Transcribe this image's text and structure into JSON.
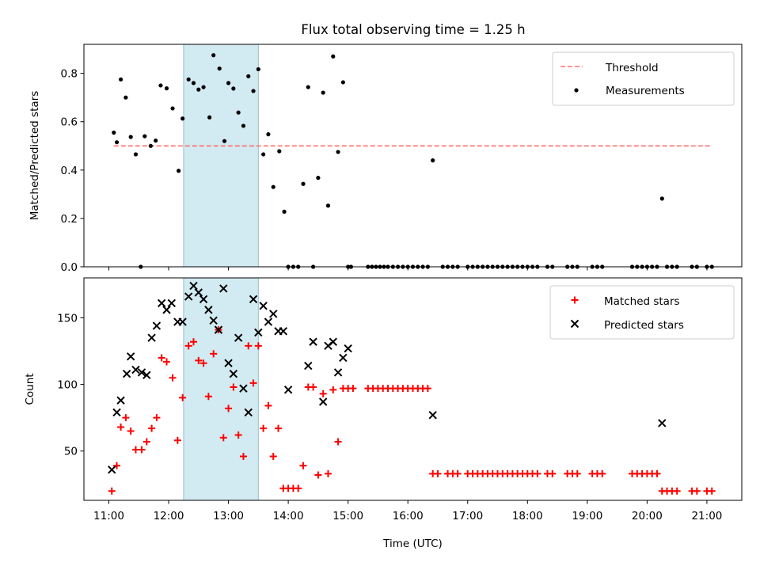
{
  "title": "Flux total observing time = 1.25 h",
  "xlabel": "Time (UTC)",
  "x_tick_labels": [
    "11:00",
    "12:00",
    "13:00",
    "14:00",
    "15:00",
    "16:00",
    "17:00",
    "18:00",
    "19:00",
    "20:00",
    "21:00"
  ],
  "colors": {
    "threshold": "#ff7070",
    "shade": "#add8e6",
    "matched": "#ff0000",
    "predicted": "#000000",
    "measure": "#000000"
  },
  "chart_data": [
    {
      "type": "scatter",
      "ylabel": "Matched/Predicted stars",
      "ylim": [
        0,
        0.92
      ],
      "y_ticks": [
        0.0,
        0.2,
        0.4,
        0.6,
        0.8
      ],
      "y_tick_labels": [
        "0.0",
        "0.2",
        "0.4",
        "0.6",
        "0.8"
      ],
      "shaded_span": [
        "12:15",
        "13:30"
      ],
      "threshold": {
        "name": "Threshold",
        "value": 0.5,
        "x_range": [
          "11:05",
          "21:05"
        ]
      },
      "legend": {
        "position": "top-right",
        "entries": [
          "Threshold",
          "Measurements"
        ]
      },
      "series": [
        {
          "name": "Measurements",
          "points": [
            [
              "11:05",
              0.555
            ],
            [
              "11:08",
              0.515
            ],
            [
              "11:12",
              0.775
            ],
            [
              "11:17",
              0.7
            ],
            [
              "11:22",
              0.537
            ],
            [
              "11:27",
              0.465
            ],
            [
              "11:32",
              0.0
            ],
            [
              "11:36",
              0.54
            ],
            [
              "11:42",
              0.5
            ],
            [
              "11:47",
              0.522
            ],
            [
              "11:52",
              0.75
            ],
            [
              "11:58",
              0.738
            ],
            [
              "12:04",
              0.655
            ],
            [
              "12:10",
              0.397
            ],
            [
              "12:14",
              0.613
            ],
            [
              "12:20",
              0.775
            ],
            [
              "12:25",
              0.76
            ],
            [
              "12:30",
              0.733
            ],
            [
              "12:35",
              0.743
            ],
            [
              "12:41",
              0.618
            ],
            [
              "12:45",
              0.875
            ],
            [
              "12:51",
              0.82
            ],
            [
              "12:56",
              0.52
            ],
            [
              "13:00",
              0.76
            ],
            [
              "13:05",
              0.737
            ],
            [
              "13:10",
              0.638
            ],
            [
              "13:15",
              0.583
            ],
            [
              "13:20",
              0.788
            ],
            [
              "13:25",
              0.727
            ],
            [
              "13:30",
              0.817
            ],
            [
              "13:35",
              0.465
            ],
            [
              "13:40",
              0.548
            ],
            [
              "13:45",
              0.33
            ],
            [
              "13:51",
              0.478
            ],
            [
              "13:56",
              0.228
            ],
            [
              "14:00",
              0.0
            ],
            [
              "14:05",
              0.0
            ],
            [
              "14:10",
              0.0
            ],
            [
              "14:15",
              0.343
            ],
            [
              "14:20",
              0.743
            ],
            [
              "14:25",
              0.0
            ],
            [
              "14:30",
              0.368
            ],
            [
              "14:35",
              0.72
            ],
            [
              "14:40",
              0.253
            ],
            [
              "14:45",
              0.87
            ],
            [
              "14:50",
              0.475
            ],
            [
              "14:55",
              0.763
            ],
            [
              "15:00",
              0.0
            ],
            [
              "15:03",
              0.0
            ],
            [
              "15:20",
              0.0
            ],
            [
              "15:24",
              0.0
            ],
            [
              "15:28",
              0.0
            ],
            [
              "15:32",
              0.0
            ],
            [
              "15:36",
              0.0
            ],
            [
              "15:40",
              0.0
            ],
            [
              "15:45",
              0.0
            ],
            [
              "15:50",
              0.0
            ],
            [
              "15:55",
              0.0
            ],
            [
              "16:00",
              0.0
            ],
            [
              "16:05",
              0.0
            ],
            [
              "16:10",
              0.0
            ],
            [
              "16:15",
              0.0
            ],
            [
              "16:20",
              0.0
            ],
            [
              "16:25",
              0.44
            ],
            [
              "16:35",
              0.0
            ],
            [
              "16:40",
              0.0
            ],
            [
              "16:45",
              0.0
            ],
            [
              "16:50",
              0.0
            ],
            [
              "17:00",
              0.0
            ],
            [
              "17:05",
              0.0
            ],
            [
              "17:10",
              0.0
            ],
            [
              "17:15",
              0.0
            ],
            [
              "17:20",
              0.0
            ],
            [
              "17:25",
              0.0
            ],
            [
              "17:30",
              0.0
            ],
            [
              "17:35",
              0.0
            ],
            [
              "17:40",
              0.0
            ],
            [
              "17:45",
              0.0
            ],
            [
              "17:50",
              0.0
            ],
            [
              "17:55",
              0.0
            ],
            [
              "18:00",
              0.0
            ],
            [
              "18:05",
              0.0
            ],
            [
              "18:10",
              0.0
            ],
            [
              "18:20",
              0.0
            ],
            [
              "18:25",
              0.0
            ],
            [
              "18:40",
              0.0
            ],
            [
              "18:45",
              0.0
            ],
            [
              "18:50",
              0.0
            ],
            [
              "19:05",
              0.0
            ],
            [
              "19:10",
              0.0
            ],
            [
              "19:15",
              0.0
            ],
            [
              "19:45",
              0.0
            ],
            [
              "19:50",
              0.0
            ],
            [
              "19:55",
              0.0
            ],
            [
              "20:00",
              0.0
            ],
            [
              "20:05",
              0.0
            ],
            [
              "20:10",
              0.0
            ],
            [
              "20:15",
              0.282
            ],
            [
              "20:20",
              0.0
            ],
            [
              "20:25",
              0.0
            ],
            [
              "20:30",
              0.0
            ],
            [
              "20:45",
              0.0
            ],
            [
              "20:50",
              0.0
            ],
            [
              "21:00",
              0.0
            ],
            [
              "21:05",
              0.0
            ]
          ]
        }
      ]
    },
    {
      "type": "scatter",
      "ylabel": "Count",
      "ylim": [
        13,
        180
      ],
      "y_ticks": [
        50,
        100,
        150
      ],
      "y_tick_labels": [
        "50",
        "100",
        "150"
      ],
      "shaded_span": [
        "12:15",
        "13:30"
      ],
      "legend": {
        "position": "top-right",
        "entries": [
          "Matched stars",
          "Predicted stars"
        ]
      },
      "series": [
        {
          "name": "Matched stars",
          "marker": "plus",
          "points": [
            [
              "11:03",
              20
            ],
            [
              "11:08",
              39
            ],
            [
              "11:12",
              68
            ],
            [
              "11:17",
              75
            ],
            [
              "11:22",
              65
            ],
            [
              "11:27",
              51
            ],
            [
              "11:33",
              51
            ],
            [
              "11:38",
              57
            ],
            [
              "11:43",
              67
            ],
            [
              "11:48",
              75
            ],
            [
              "11:53",
              120
            ],
            [
              "11:58",
              117
            ],
            [
              "12:04",
              105
            ],
            [
              "12:09",
              58
            ],
            [
              "12:14",
              90
            ],
            [
              "12:20",
              129
            ],
            [
              "12:25",
              132
            ],
            [
              "12:30",
              118
            ],
            [
              "12:35",
              116
            ],
            [
              "12:40",
              91
            ],
            [
              "12:45",
              123
            ],
            [
              "12:50",
              141
            ],
            [
              "12:55",
              60
            ],
            [
              "13:00",
              82
            ],
            [
              "13:05",
              98
            ],
            [
              "13:10",
              62
            ],
            [
              "13:15",
              46
            ],
            [
              "13:20",
              129
            ],
            [
              "13:25",
              101
            ],
            [
              "13:30",
              129
            ],
            [
              "13:35",
              67
            ],
            [
              "13:40",
              84
            ],
            [
              "13:45",
              46
            ],
            [
              "13:50",
              67
            ],
            [
              "13:55",
              22
            ],
            [
              "14:00",
              22
            ],
            [
              "14:05",
              22
            ],
            [
              "14:10",
              22
            ],
            [
              "14:15",
              39
            ],
            [
              "14:20",
              98
            ],
            [
              "14:25",
              98
            ],
            [
              "14:30",
              32
            ],
            [
              "14:35",
              93
            ],
            [
              "14:40",
              33
            ],
            [
              "14:45",
              96
            ],
            [
              "14:50",
              57
            ],
            [
              "14:55",
              97
            ],
            [
              "15:00",
              97
            ],
            [
              "15:05",
              97
            ],
            [
              "15:20",
              97
            ],
            [
              "15:25",
              97
            ],
            [
              "15:30",
              97
            ],
            [
              "15:35",
              97
            ],
            [
              "15:40",
              97
            ],
            [
              "15:45",
              97
            ],
            [
              "15:50",
              97
            ],
            [
              "15:55",
              97
            ],
            [
              "16:00",
              97
            ],
            [
              "16:05",
              97
            ],
            [
              "16:10",
              97
            ],
            [
              "16:15",
              97
            ],
            [
              "16:20",
              97
            ],
            [
              "16:25",
              33
            ],
            [
              "16:30",
              33
            ],
            [
              "16:40",
              33
            ],
            [
              "16:45",
              33
            ],
            [
              "16:50",
              33
            ],
            [
              "17:00",
              33
            ],
            [
              "17:05",
              33
            ],
            [
              "17:10",
              33
            ],
            [
              "17:15",
              33
            ],
            [
              "17:20",
              33
            ],
            [
              "17:25",
              33
            ],
            [
              "17:30",
              33
            ],
            [
              "17:35",
              33
            ],
            [
              "17:40",
              33
            ],
            [
              "17:45",
              33
            ],
            [
              "17:50",
              33
            ],
            [
              "17:55",
              33
            ],
            [
              "18:00",
              33
            ],
            [
              "18:05",
              33
            ],
            [
              "18:10",
              33
            ],
            [
              "18:20",
              33
            ],
            [
              "18:25",
              33
            ],
            [
              "18:40",
              33
            ],
            [
              "18:45",
              33
            ],
            [
              "18:50",
              33
            ],
            [
              "19:05",
              33
            ],
            [
              "19:10",
              33
            ],
            [
              "19:15",
              33
            ],
            [
              "19:45",
              33
            ],
            [
              "19:50",
              33
            ],
            [
              "19:55",
              33
            ],
            [
              "20:00",
              33
            ],
            [
              "20:05",
              33
            ],
            [
              "20:10",
              33
            ],
            [
              "20:15",
              20
            ],
            [
              "20:20",
              20
            ],
            [
              "20:25",
              20
            ],
            [
              "20:30",
              20
            ],
            [
              "20:45",
              20
            ],
            [
              "20:50",
              20
            ],
            [
              "21:00",
              20
            ],
            [
              "21:05",
              20
            ]
          ]
        },
        {
          "name": "Predicted stars",
          "marker": "x",
          "points": [
            [
              "11:03",
              36
            ],
            [
              "11:08",
              79
            ],
            [
              "11:12",
              88
            ],
            [
              "11:18",
              108
            ],
            [
              "11:22",
              121
            ],
            [
              "11:27",
              111
            ],
            [
              "11:33",
              109
            ],
            [
              "11:38",
              107
            ],
            [
              "11:43",
              135
            ],
            [
              "11:48",
              144
            ],
            [
              "11:53",
              161
            ],
            [
              "11:58",
              156
            ],
            [
              "12:03",
              161
            ],
            [
              "12:09",
              147
            ],
            [
              "12:14",
              147
            ],
            [
              "12:20",
              166
            ],
            [
              "12:25",
              174
            ],
            [
              "12:30",
              169
            ],
            [
              "12:35",
              164
            ],
            [
              "12:40",
              156
            ],
            [
              "12:45",
              148
            ],
            [
              "12:50",
              141
            ],
            [
              "12:55",
              172
            ],
            [
              "13:00",
              116
            ],
            [
              "13:05",
              108
            ],
            [
              "13:10",
              135
            ],
            [
              "13:15",
              97
            ],
            [
              "13:20",
              79
            ],
            [
              "13:25",
              164
            ],
            [
              "13:30",
              139
            ],
            [
              "13:35",
              159
            ],
            [
              "13:40",
              147
            ],
            [
              "13:45",
              153
            ],
            [
              "13:50",
              140
            ],
            [
              "13:55",
              140
            ],
            [
              "14:00",
              96
            ],
            [
              "14:20",
              114
            ],
            [
              "14:25",
              132
            ],
            [
              "14:35",
              87
            ],
            [
              "14:40",
              129
            ],
            [
              "14:45",
              132
            ],
            [
              "14:50",
              109
            ],
            [
              "14:55",
              120
            ],
            [
              "15:00",
              127
            ],
            [
              "16:25",
              77
            ],
            [
              "20:15",
              71
            ]
          ]
        }
      ]
    }
  ]
}
